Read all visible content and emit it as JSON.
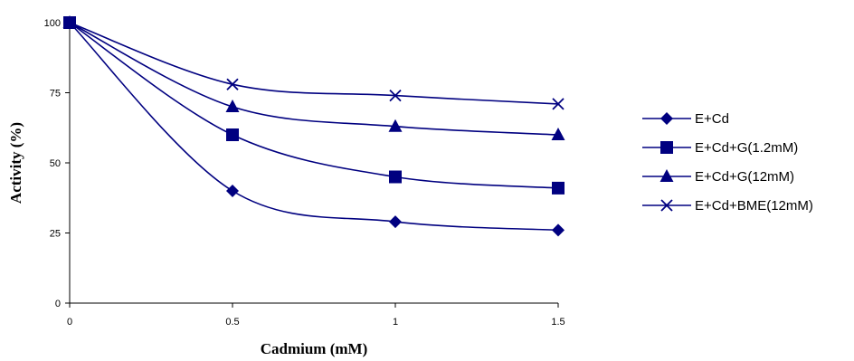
{
  "chart_data": {
    "type": "line",
    "title": "",
    "xlabel": "Cadmium (mM)",
    "ylabel": "Activity (%)",
    "xlim": [
      0,
      1.5
    ],
    "ylim": [
      0,
      100
    ],
    "x_ticks": [
      "0",
      "0.5",
      "1",
      "1.5"
    ],
    "y_ticks": [
      "0",
      "25",
      "50",
      "75",
      "100"
    ],
    "grid": false,
    "legend_position": "right",
    "line_color": "#000080",
    "smooth": true,
    "series": [
      {
        "name": "E+Cd",
        "marker": "diamond",
        "x": [
          0,
          0.5,
          1,
          1.5
        ],
        "y": [
          100,
          40,
          29,
          26
        ]
      },
      {
        "name": "E+Cd+G(1.2mM)",
        "marker": "square",
        "x": [
          0,
          0.5,
          1,
          1.5
        ],
        "y": [
          100,
          60,
          45,
          41
        ]
      },
      {
        "name": "E+Cd+G(12mM)",
        "marker": "triangle",
        "x": [
          0,
          0.5,
          1,
          1.5
        ],
        "y": [
          100,
          70,
          63,
          60
        ]
      },
      {
        "name": "E+Cd+BME(12mM)",
        "marker": "cross",
        "x": [
          0,
          0.5,
          1,
          1.5
        ],
        "y": [
          100,
          78,
          74,
          71
        ]
      }
    ]
  }
}
